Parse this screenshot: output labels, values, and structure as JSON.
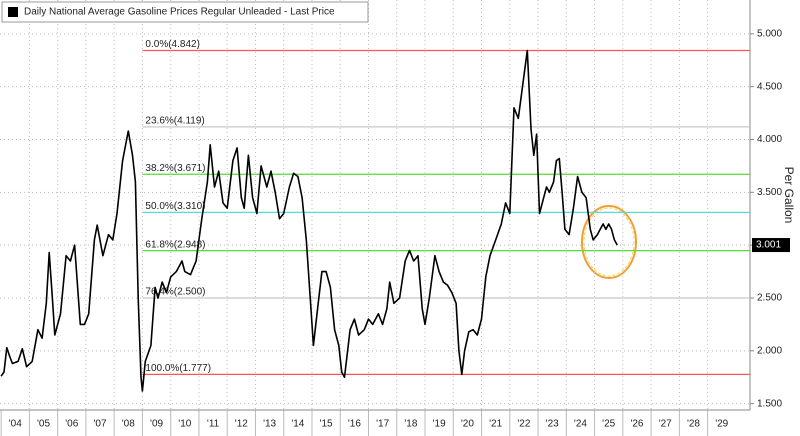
{
  "chart_data": {
    "type": "line",
    "legend_title": "Daily National Average Gasoline Prices Regular Unleaded - Last Price",
    "y_label": "Per Gallon",
    "x": [
      2004.0,
      2004.1,
      2004.2,
      2004.3,
      2004.4,
      2004.6,
      2004.75,
      2004.9,
      2005.1,
      2005.3,
      2005.45,
      2005.6,
      2005.7,
      2005.8,
      2005.9,
      2006.1,
      2006.3,
      2006.45,
      2006.6,
      2006.8,
      2006.95,
      2007.1,
      2007.3,
      2007.4,
      2007.6,
      2007.8,
      2007.95,
      2008.1,
      2008.3,
      2008.5,
      2008.65,
      2008.75,
      2008.85,
      2008.95,
      2009.0,
      2009.1,
      2009.3,
      2009.45,
      2009.55,
      2009.7,
      2009.85,
      2010.0,
      2010.2,
      2010.4,
      2010.5,
      2010.7,
      2010.9,
      2011.1,
      2011.3,
      2011.4,
      2011.55,
      2011.7,
      2011.85,
      2012.0,
      2012.2,
      2012.35,
      2012.5,
      2012.6,
      2012.75,
      2012.9,
      2013.05,
      2013.2,
      2013.4,
      2013.55,
      2013.7,
      2013.85,
      2014.0,
      2014.2,
      2014.35,
      2014.5,
      2014.65,
      2014.8,
      2014.95,
      2015.05,
      2015.2,
      2015.35,
      2015.5,
      2015.65,
      2015.8,
      2015.95,
      2016.05,
      2016.15,
      2016.35,
      2016.5,
      2016.65,
      2016.85,
      2017.0,
      2017.15,
      2017.35,
      2017.5,
      2017.65,
      2017.75,
      2017.9,
      2018.1,
      2018.3,
      2018.45,
      2018.6,
      2018.75,
      2018.9,
      2019.0,
      2019.15,
      2019.35,
      2019.5,
      2019.65,
      2019.8,
      2019.95,
      2020.1,
      2020.2,
      2020.3,
      2020.4,
      2020.55,
      2020.7,
      2020.85,
      2021.0,
      2021.15,
      2021.3,
      2021.5,
      2021.7,
      2021.85,
      2022.0,
      2022.15,
      2022.3,
      2022.5,
      2022.62,
      2022.75,
      2022.85,
      2022.95,
      2023.05,
      2023.15,
      2023.3,
      2023.4,
      2023.55,
      2023.65,
      2023.75,
      2023.85,
      2023.95,
      2024.1,
      2024.25,
      2024.4,
      2024.55,
      2024.7,
      2024.85,
      2024.95,
      2025.1,
      2025.2,
      2025.3,
      2025.4,
      2025.5,
      2025.6,
      2025.7,
      2025.8
    ],
    "series": [
      {
        "name": "Daily National Average Gasoline Prices Regular Unleaded - Last Price",
        "color": "#000000",
        "values": [
          1.76,
          1.8,
          2.03,
          1.95,
          1.88,
          1.9,
          2.02,
          1.85,
          1.9,
          2.2,
          2.12,
          2.45,
          2.93,
          2.55,
          2.15,
          2.35,
          2.9,
          2.85,
          3.0,
          2.25,
          2.25,
          2.35,
          3.05,
          3.19,
          2.9,
          3.1,
          3.05,
          3.3,
          3.8,
          4.08,
          3.85,
          3.6,
          2.5,
          1.75,
          1.62,
          1.9,
          2.05,
          2.6,
          2.5,
          2.65,
          2.55,
          2.7,
          2.75,
          2.85,
          2.75,
          2.72,
          2.85,
          3.25,
          3.6,
          3.95,
          3.55,
          3.7,
          3.4,
          3.35,
          3.8,
          3.92,
          3.45,
          3.35,
          3.85,
          3.45,
          3.3,
          3.75,
          3.55,
          3.7,
          3.5,
          3.25,
          3.3,
          3.55,
          3.68,
          3.65,
          3.45,
          3.05,
          2.45,
          2.05,
          2.4,
          2.75,
          2.75,
          2.6,
          2.2,
          2.05,
          1.8,
          1.75,
          2.2,
          2.3,
          2.15,
          2.2,
          2.3,
          2.25,
          2.35,
          2.25,
          2.4,
          2.65,
          2.45,
          2.5,
          2.85,
          2.95,
          2.85,
          2.9,
          2.4,
          2.25,
          2.5,
          2.9,
          2.75,
          2.65,
          2.62,
          2.55,
          2.45,
          2.0,
          1.777,
          2.0,
          2.18,
          2.2,
          2.15,
          2.3,
          2.7,
          2.9,
          3.05,
          3.2,
          3.4,
          3.3,
          4.3,
          4.2,
          4.6,
          4.842,
          4.1,
          3.85,
          4.05,
          3.3,
          3.4,
          3.55,
          3.5,
          3.6,
          3.8,
          3.82,
          3.5,
          3.15,
          3.1,
          3.35,
          3.65,
          3.5,
          3.45,
          3.15,
          3.05,
          3.1,
          3.15,
          3.2,
          3.15,
          3.2,
          3.15,
          3.05,
          3.001
        ]
      }
    ],
    "xlim": [
      2003.96,
      2030.5
    ],
    "xticks": [
      {
        "value": 2004,
        "label": "'04"
      },
      {
        "value": 2005,
        "label": "'05"
      },
      {
        "value": 2006,
        "label": "'06"
      },
      {
        "value": 2007,
        "label": "'07"
      },
      {
        "value": 2008,
        "label": "'08"
      },
      {
        "value": 2009,
        "label": "'09"
      },
      {
        "value": 2010,
        "label": "'10"
      },
      {
        "value": 2011,
        "label": "'11"
      },
      {
        "value": 2012,
        "label": "'12"
      },
      {
        "value": 2013,
        "label": "'13"
      },
      {
        "value": 2014,
        "label": "'14"
      },
      {
        "value": 2015,
        "label": "'15"
      },
      {
        "value": 2016,
        "label": "'16"
      },
      {
        "value": 2017,
        "label": "'17"
      },
      {
        "value": 2018,
        "label": "'18"
      },
      {
        "value": 2019,
        "label": "'19"
      },
      {
        "value": 2020,
        "label": "'20"
      },
      {
        "value": 2021,
        "label": "'21"
      },
      {
        "value": 2022,
        "label": "'22"
      },
      {
        "value": 2023,
        "label": "'23"
      },
      {
        "value": 2024,
        "label": "'24"
      },
      {
        "value": 2025,
        "label": "'25"
      },
      {
        "value": 2026,
        "label": "'26"
      },
      {
        "value": 2027,
        "label": "'27"
      },
      {
        "value": 2028,
        "label": "'28"
      },
      {
        "value": 2029,
        "label": "'29"
      }
    ],
    "ylim": [
      1.44,
      5.32
    ],
    "yticks": [
      {
        "value": 1.5,
        "label": "1.500"
      },
      {
        "value": 2.0,
        "label": "2.000"
      },
      {
        "value": 2.5,
        "label": "2.500"
      },
      {
        "value": 3.0,
        "label": "3.000"
      },
      {
        "value": 3.5,
        "label": "3.500"
      },
      {
        "value": 4.0,
        "label": "4.000"
      },
      {
        "value": 4.5,
        "label": "4.500"
      },
      {
        "value": 5.0,
        "label": "5.000"
      }
    ],
    "grid": true,
    "fib_levels": [
      {
        "label": "0.0%(4.842)",
        "value": 4.842,
        "color": "#ff5555"
      },
      {
        "label": "23.6%(4.119)",
        "value": 4.119,
        "color": "#c8c8c8"
      },
      {
        "label": "38.2%(3.671)",
        "value": 3.671,
        "color": "#55dd33"
      },
      {
        "label": "50.0%(3.310)",
        "value": 3.31,
        "color": "#55dddd"
      },
      {
        "label": "61.8%(2.948)",
        "value": 2.948,
        "color": "#55dd33"
      },
      {
        "label": "76.4%(2.500)",
        "value": 2.5,
        "color": "#c8c8c8"
      },
      {
        "label": "100.0%(1.777)",
        "value": 1.777,
        "color": "#ff5555"
      }
    ],
    "last_price": 3.001
  }
}
